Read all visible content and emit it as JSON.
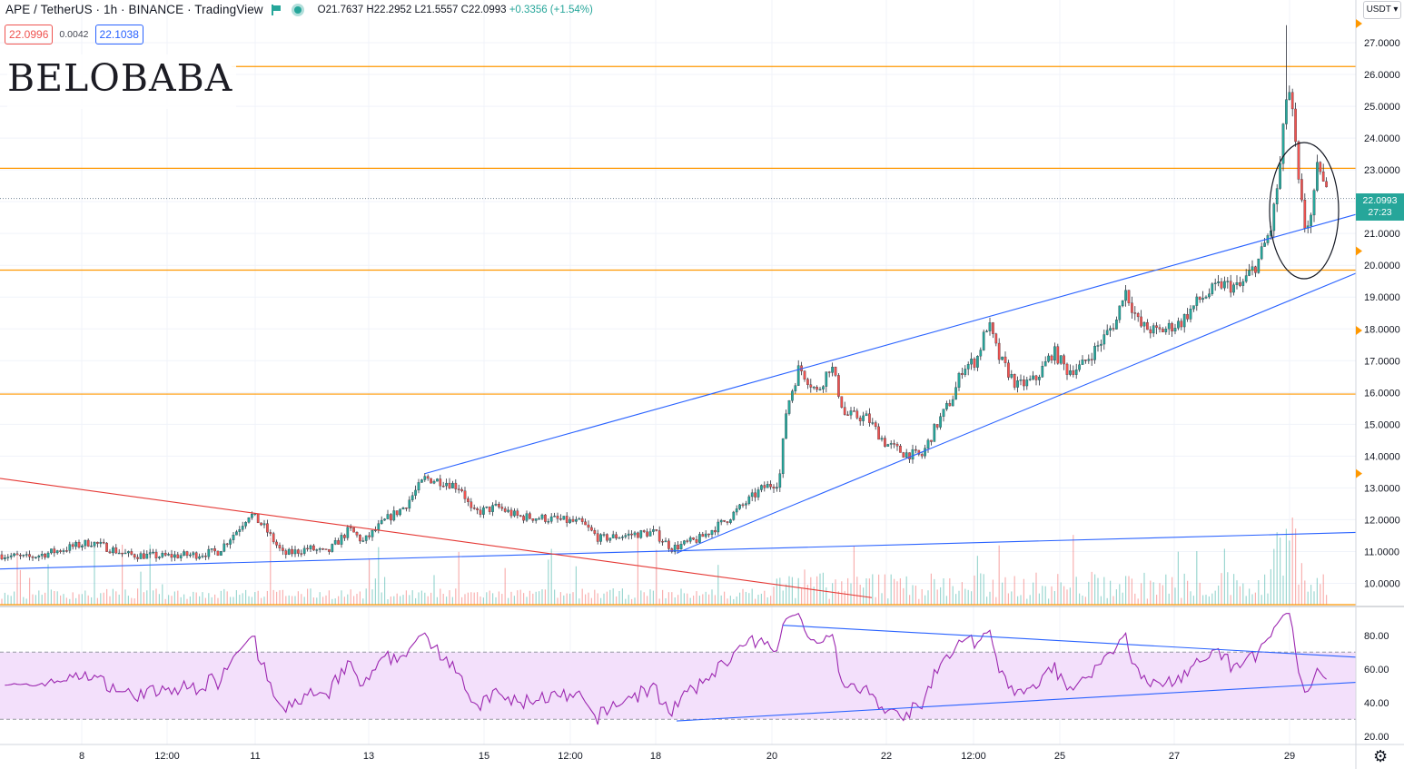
{
  "header": {
    "symbol": "APE / TetherUS · 1h · BINANCE · TradingView",
    "open": "O21.7637",
    "high": "H22.2952",
    "low": "L21.5557",
    "close": "C22.0993",
    "change": "+0.3356 (+1.54%)"
  },
  "quotes": {
    "sell": "22.0996",
    "spread": "0.0042",
    "buy": "22.1038"
  },
  "logo": "BELOBABA",
  "currency_button": "USDT ▾",
  "last_price": {
    "value": "22.0993",
    "countdown": "27:23"
  },
  "colors": {
    "up": "#26a69a",
    "down": "#ef5350",
    "level": "#ff9800",
    "trend": "#2962ff",
    "downtrend": "#e53935",
    "rsi": "#9c27b0",
    "rsi_band": "#f3e0fb"
  },
  "chart_data": [
    {
      "type": "candlestick",
      "title": "",
      "price_axis": {
        "min": 9.5,
        "max": 27.6,
        "ticks": [
          "27.0000",
          "26.0000",
          "25.0000",
          "24.0000",
          "23.0000",
          "22.0000",
          "21.0000",
          "20.0000",
          "19.0000",
          "18.0000",
          "17.0000",
          "16.0000",
          "15.0000",
          "14.0000",
          "13.0000",
          "12.0000",
          "11.0000",
          "10.0000"
        ]
      },
      "time_axis": {
        "labels": [
          "8",
          "12:00",
          "11",
          "13",
          "15",
          "12:00",
          "18",
          "20",
          "22",
          "12:00",
          "25",
          "27",
          "29"
        ]
      },
      "horizontal_levels": [
        26.25,
        23.05,
        19.85,
        15.95
      ],
      "close_path": [
        {
          "t": 0,
          "p": 10.9
        },
        {
          "t": 30,
          "p": 10.8
        },
        {
          "t": 60,
          "p": 11.0
        },
        {
          "t": 100,
          "p": 11.3
        },
        {
          "t": 140,
          "p": 10.9
        },
        {
          "t": 180,
          "p": 10.85
        },
        {
          "t": 215,
          "p": 10.9
        },
        {
          "t": 240,
          "p": 11.0
        },
        {
          "t": 262,
          "p": 11.7
        },
        {
          "t": 275,
          "p": 12.2
        },
        {
          "t": 290,
          "p": 11.8
        },
        {
          "t": 312,
          "p": 10.9
        },
        {
          "t": 340,
          "p": 11.1
        },
        {
          "t": 360,
          "p": 10.95
        },
        {
          "t": 385,
          "p": 11.7
        },
        {
          "t": 400,
          "p": 11.3
        },
        {
          "t": 425,
          "p": 12.0
        },
        {
          "t": 445,
          "p": 12.4
        },
        {
          "t": 468,
          "p": 13.3
        },
        {
          "t": 490,
          "p": 13.2
        },
        {
          "t": 508,
          "p": 13.0
        },
        {
          "t": 520,
          "p": 12.2
        },
        {
          "t": 548,
          "p": 12.4
        },
        {
          "t": 570,
          "p": 12.1
        },
        {
          "t": 600,
          "p": 12.05
        },
        {
          "t": 640,
          "p": 11.9
        },
        {
          "t": 660,
          "p": 11.4
        },
        {
          "t": 700,
          "p": 11.55
        },
        {
          "t": 720,
          "p": 11.6
        },
        {
          "t": 740,
          "p": 11.1
        },
        {
          "t": 770,
          "p": 11.4
        },
        {
          "t": 800,
          "p": 12.0
        },
        {
          "t": 820,
          "p": 12.5
        },
        {
          "t": 840,
          "p": 13.0
        },
        {
          "t": 858,
          "p": 13.2
        },
        {
          "t": 866,
          "p": 15.5
        },
        {
          "t": 880,
          "p": 16.8
        },
        {
          "t": 900,
          "p": 16.0
        },
        {
          "t": 915,
          "p": 16.9
        },
        {
          "t": 930,
          "p": 15.3
        },
        {
          "t": 955,
          "p": 15.2
        },
        {
          "t": 975,
          "p": 14.4
        },
        {
          "t": 995,
          "p": 14.1
        },
        {
          "t": 1015,
          "p": 14.0
        },
        {
          "t": 1030,
          "p": 14.9
        },
        {
          "t": 1050,
          "p": 15.9
        },
        {
          "t": 1060,
          "p": 16.8
        },
        {
          "t": 1075,
          "p": 17.0
        },
        {
          "t": 1088,
          "p": 18.2
        },
        {
          "t": 1100,
          "p": 17.1
        },
        {
          "t": 1120,
          "p": 16.2
        },
        {
          "t": 1140,
          "p": 16.4
        },
        {
          "t": 1160,
          "p": 17.3
        },
        {
          "t": 1175,
          "p": 16.7
        },
        {
          "t": 1190,
          "p": 16.8
        },
        {
          "t": 1210,
          "p": 17.5
        },
        {
          "t": 1230,
          "p": 18.3
        },
        {
          "t": 1238,
          "p": 19.3
        },
        {
          "t": 1255,
          "p": 18.1
        },
        {
          "t": 1275,
          "p": 17.9
        },
        {
          "t": 1300,
          "p": 18.2
        },
        {
          "t": 1320,
          "p": 18.9
        },
        {
          "t": 1345,
          "p": 19.4
        },
        {
          "t": 1365,
          "p": 19.3
        },
        {
          "t": 1385,
          "p": 20.1
        },
        {
          "t": 1400,
          "p": 21.2
        },
        {
          "t": 1410,
          "p": 23.2
        },
        {
          "t": 1418,
          "p": 25.8
        },
        {
          "t": 1425,
          "p": 24.3
        },
        {
          "t": 1430,
          "p": 22.5
        },
        {
          "t": 1437,
          "p": 21.2
        },
        {
          "t": 1445,
          "p": 21.6
        },
        {
          "t": 1452,
          "p": 23.4
        },
        {
          "t": 1458,
          "p": 22.4
        },
        {
          "t": 1464,
          "p": 22.1
        }
      ]
    },
    {
      "type": "line",
      "title": "",
      "series": [
        {
          "values": []
        }
      ],
      "ylim": [
        15,
        95
      ],
      "bands": [
        30,
        70
      ],
      "ticks": [
        "80.00",
        "60.00",
        "40.00",
        "20.00"
      ]
    }
  ]
}
